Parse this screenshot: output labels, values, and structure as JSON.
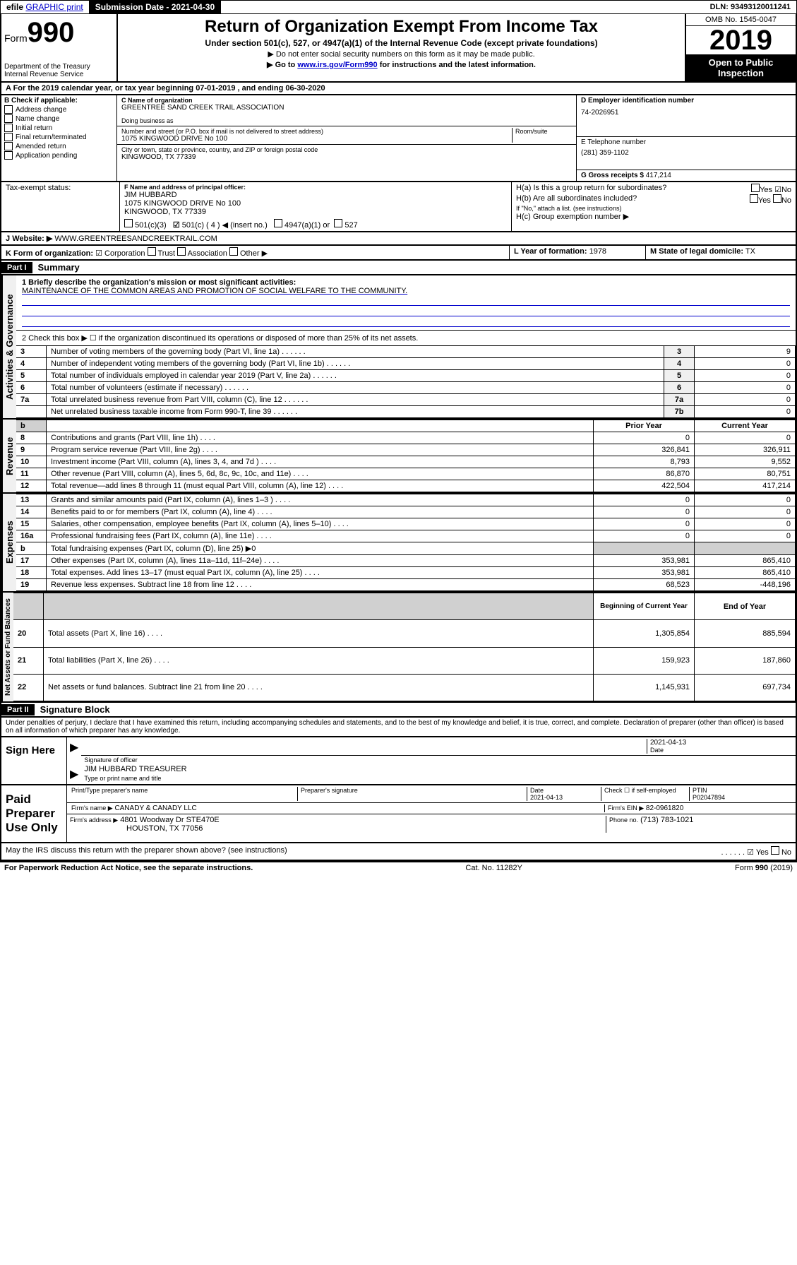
{
  "topbar": {
    "efile": "efile GRAPHIC print",
    "submission": "Submission Date - 2021-04-30",
    "dln": "DLN: 93493120011241"
  },
  "header": {
    "form_prefix": "Form",
    "form_number": "990",
    "dept": "Department of the Treasury\nInternal Revenue Service",
    "title": "Return of Organization Exempt From Income Tax",
    "subtitle": "Under section 501(c), 527, or 4947(a)(1) of the Internal Revenue Code (except private foundations)",
    "instr1": "▶ Do not enter social security numbers on this form as it may be made public.",
    "instr2_pre": "▶ Go to ",
    "instr2_link": "www.irs.gov/Form990",
    "instr2_post": " for instructions and the latest information.",
    "omb": "OMB No. 1545-0047",
    "year": "2019",
    "open": "Open to Public Inspection"
  },
  "line_a": "A For the 2019 calendar year, or tax year beginning 07-01-2019    , and ending 06-30-2020",
  "section_b": {
    "label": "B Check if applicable:",
    "items": [
      "Address change",
      "Name change",
      "Initial return",
      "Final return/terminated",
      "Amended return",
      "Application pending"
    ]
  },
  "section_c": {
    "label_name": "C Name of organization",
    "name": "GREENTREE SAND CREEK TRAIL ASSOCIATION",
    "dba_label": "Doing business as",
    "addr_label": "Number and street (or P.O. box if mail is not delivered to street address)",
    "room_label": "Room/suite",
    "addr": "1075 KINGWOOD DRIVE No 100",
    "city_label": "City or town, state or province, country, and ZIP or foreign postal code",
    "city": "KINGWOOD, TX  77339"
  },
  "section_d": {
    "label": "D Employer identification number",
    "value": "74-2026951"
  },
  "section_e": {
    "label": "E Telephone number",
    "value": "(281) 359-1102"
  },
  "section_g": {
    "label": "G Gross receipts $",
    "value": "417,214"
  },
  "section_f": {
    "label": "F  Name and address of principal officer:",
    "name": "JIM HUBBARD",
    "addr": "1075 KINGWOOD DRIVE No 100\nKINGWOOD, TX  77339"
  },
  "section_h": {
    "ha": "H(a)  Is this a group return for subordinates?",
    "hb": "H(b)  Are all subordinates included?",
    "hb_note": "If \"No,\" attach a list. (see instructions)",
    "hc": "H(c)  Group exemption number ▶",
    "yes": "Yes",
    "no": "No"
  },
  "tax_exempt": {
    "label": "Tax-exempt status:",
    "opts": [
      "501(c)(3)",
      "501(c) ( 4 ) ◀ (insert no.)",
      "4947(a)(1) or",
      "527"
    ]
  },
  "section_j": {
    "label": "J",
    "website_label": "Website: ▶",
    "value": "WWW.GREENTREESANDCREEKTRAIL.COM"
  },
  "section_k": {
    "label": "K Form of organization:",
    "opts": [
      "Corporation",
      "Trust",
      "Association",
      "Other ▶"
    ]
  },
  "section_l": {
    "label": "L Year of formation:",
    "value": "1978"
  },
  "section_m": {
    "label": "M State of legal domicile:",
    "value": "TX"
  },
  "part1": {
    "header": "Part I",
    "title": "Summary"
  },
  "summary": {
    "q1_label": "1  Briefly describe the organization's mission or most significant activities:",
    "q1_value": "MAINTENANCE OF THE COMMON AREAS AND PROMOTION OF SOCIAL WELFARE TO THE COMMUNITY.",
    "q2": "2   Check this box ▶ ☐  if the organization discontinued its operations or disposed of more than 25% of its net assets.",
    "rows_gov": [
      {
        "n": "3",
        "d": "Number of voting members of the governing body (Part VI, line 1a)",
        "box": "3",
        "v": "9"
      },
      {
        "n": "4",
        "d": "Number of independent voting members of the governing body (Part VI, line 1b)",
        "box": "4",
        "v": "0"
      },
      {
        "n": "5",
        "d": "Total number of individuals employed in calendar year 2019 (Part V, line 2a)",
        "box": "5",
        "v": "0"
      },
      {
        "n": "6",
        "d": "Total number of volunteers (estimate if necessary)",
        "box": "6",
        "v": "0"
      },
      {
        "n": "7a",
        "d": "Total unrelated business revenue from Part VIII, column (C), line 12",
        "box": "7a",
        "v": "0"
      },
      {
        "n": "",
        "d": "Net unrelated business taxable income from Form 990-T, line 39",
        "box": "7b",
        "v": "0"
      }
    ],
    "col_prior": "Prior Year",
    "col_current": "Current Year",
    "rev_rows": [
      {
        "n": "8",
        "d": "Contributions and grants (Part VIII, line 1h)",
        "p": "0",
        "c": "0"
      },
      {
        "n": "9",
        "d": "Program service revenue (Part VIII, line 2g)",
        "p": "326,841",
        "c": "326,911"
      },
      {
        "n": "10",
        "d": "Investment income (Part VIII, column (A), lines 3, 4, and 7d )",
        "p": "8,793",
        "c": "9,552"
      },
      {
        "n": "11",
        "d": "Other revenue (Part VIII, column (A), lines 5, 6d, 8c, 9c, 10c, and 11e)",
        "p": "86,870",
        "c": "80,751"
      },
      {
        "n": "12",
        "d": "Total revenue—add lines 8 through 11 (must equal Part VIII, column (A), line 12)",
        "p": "422,504",
        "c": "417,214"
      }
    ],
    "exp_rows": [
      {
        "n": "13",
        "d": "Grants and similar amounts paid (Part IX, column (A), lines 1–3 )",
        "p": "0",
        "c": "0"
      },
      {
        "n": "14",
        "d": "Benefits paid to or for members (Part IX, column (A), line 4)",
        "p": "0",
        "c": "0"
      },
      {
        "n": "15",
        "d": "Salaries, other compensation, employee benefits (Part IX, column (A), lines 5–10)",
        "p": "0",
        "c": "0"
      },
      {
        "n": "16a",
        "d": "Professional fundraising fees (Part IX, column (A), line 11e)",
        "p": "0",
        "c": "0"
      },
      {
        "n": "b",
        "d": "Total fundraising expenses (Part IX, column (D), line 25) ▶0",
        "p": "",
        "c": "",
        "shaded": true
      },
      {
        "n": "17",
        "d": "Other expenses (Part IX, column (A), lines 11a–11d, 11f–24e)",
        "p": "353,981",
        "c": "865,410"
      },
      {
        "n": "18",
        "d": "Total expenses. Add lines 13–17 (must equal Part IX, column (A), line 25)",
        "p": "353,981",
        "c": "865,410"
      },
      {
        "n": "19",
        "d": "Revenue less expenses. Subtract line 18 from line 12",
        "p": "68,523",
        "c": "-448,196"
      }
    ],
    "col_begin": "Beginning of Current Year",
    "col_end": "End of Year",
    "net_rows": [
      {
        "n": "20",
        "d": "Total assets (Part X, line 16)",
        "p": "1,305,854",
        "c": "885,594"
      },
      {
        "n": "21",
        "d": "Total liabilities (Part X, line 26)",
        "p": "159,923",
        "c": "187,860"
      },
      {
        "n": "22",
        "d": "Net assets or fund balances. Subtract line 21 from line 20",
        "p": "1,145,931",
        "c": "697,734"
      }
    ]
  },
  "labels": {
    "gov": "Activities & Governance",
    "rev": "Revenue",
    "exp": "Expenses",
    "net": "Net Assets or Fund Balances"
  },
  "part2": {
    "header": "Part II",
    "title": "Signature Block"
  },
  "perjury": "Under penalties of perjury, I declare that I have examined this return, including accompanying schedules and statements, and to the best of my knowledge and belief, it is true, correct, and complete. Declaration of preparer (other than officer) is based on all information of which preparer has any knowledge.",
  "sign": {
    "here": "Sign Here",
    "sig_officer": "Signature of officer",
    "date": "Date",
    "date_val": "2021-04-13",
    "name": "JIM HUBBARD TREASURER",
    "name_label": "Type or print name and title"
  },
  "preparer": {
    "label": "Paid Preparer Use Only",
    "print_label": "Print/Type preparer's name",
    "sig_label": "Preparer's signature",
    "date_label": "Date",
    "date_val": "2021-04-13",
    "check_label": "Check ☐ if self-employed",
    "ptin_label": "PTIN",
    "ptin": "P02047894",
    "firm_name_label": "Firm's name    ▶",
    "firm_name": "CANADY & CANADY LLC",
    "firm_ein_label": "Firm's EIN ▶",
    "firm_ein": "82-0961820",
    "firm_addr_label": "Firm's address ▶",
    "firm_addr": "4801 Woodway Dr STE470E",
    "firm_city": "HOUSTON, TX  77056",
    "phone_label": "Phone no.",
    "phone": "(713) 783-1021"
  },
  "discuss": "May the IRS discuss this return with the preparer shown above? (see instructions)",
  "footer": {
    "left": "For Paperwork Reduction Act Notice, see the separate instructions.",
    "mid": "Cat. No. 11282Y",
    "right": "Form 990 (2019)"
  }
}
